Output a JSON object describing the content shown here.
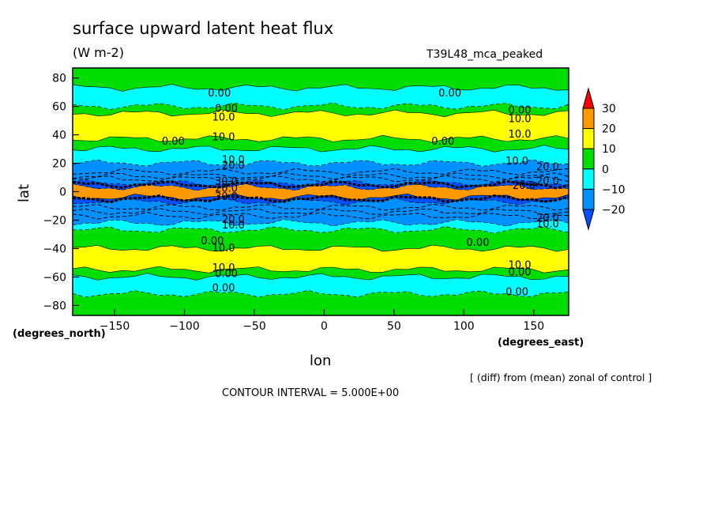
{
  "chart_data": {
    "type": "contour",
    "title": "surface upward latent heat flux",
    "units": "(W m-2)",
    "run_label": "T39L48_mca_peaked",
    "xlabel": "lon",
    "ylabel": "lat",
    "x_units": "(degrees_east)",
    "y_units": "(degrees_north)",
    "x_ticks": [
      -150,
      -100,
      -50,
      0,
      50,
      100,
      150
    ],
    "y_ticks": [
      80,
      60,
      40,
      20,
      0,
      -20,
      -40,
      -60,
      -80
    ],
    "xlim": [
      -180,
      175
    ],
    "ylim": [
      -87,
      87
    ],
    "note": "[ (diff) from (mean) zonal of control ]",
    "contour_interval": "CONTOUR INTERVAL = 5.000E+00",
    "colorbar": {
      "labels": [
        "30",
        "20",
        "10",
        "0",
        "−10",
        "−20"
      ],
      "colors": [
        "#ff0000",
        "#ff9900",
        "#ffff00",
        "#00dd00",
        "#00ffff",
        "#0090ff",
        "#0050ff"
      ]
    },
    "bands": [
      {
        "lat_top": 87,
        "lat_bottom": 73,
        "level": "0 to 10",
        "color": "#00dd00"
      },
      {
        "lat_top": 73,
        "lat_bottom": 60,
        "level": "-10 to 0",
        "color": "#00ffff"
      },
      {
        "lat_top": 60,
        "lat_bottom": 55,
        "level": "0 to 10",
        "color": "#00dd00"
      },
      {
        "lat_top": 55,
        "lat_bottom": 37,
        "level": "10 to 20",
        "color": "#ffff00"
      },
      {
        "lat_top": 37,
        "lat_bottom": 30,
        "level": "0 to 10",
        "color": "#00dd00"
      },
      {
        "lat_top": 30,
        "lat_bottom": 20,
        "level": "-10 to 0",
        "color": "#00ffff"
      },
      {
        "lat_top": 20,
        "lat_bottom": 6,
        "level": "-20 to -10",
        "color": "#0090ff"
      },
      {
        "lat_top": 6,
        "lat_bottom": 3,
        "level": "< -20",
        "color": "#0050ff"
      },
      {
        "lat_top": 3,
        "lat_bottom": -4,
        "level": "20 to 30",
        "color": "#ff9900"
      },
      {
        "lat_top": -4,
        "lat_bottom": -7,
        "level": "< -20",
        "color": "#0050ff"
      },
      {
        "lat_top": -7,
        "lat_bottom": -22,
        "level": "-20 to -10",
        "color": "#0090ff"
      },
      {
        "lat_top": -22,
        "lat_bottom": -27,
        "level": "-10 to 0",
        "color": "#00ffff"
      },
      {
        "lat_top": -27,
        "lat_bottom": -40,
        "level": "0 to 10",
        "color": "#00dd00"
      },
      {
        "lat_top": -40,
        "lat_bottom": -55,
        "level": "10 to 20",
        "color": "#ffff00"
      },
      {
        "lat_top": -55,
        "lat_bottom": -60,
        "level": "0 to 10",
        "color": "#00dd00"
      },
      {
        "lat_top": -60,
        "lat_bottom": -72,
        "level": "-10 to 0",
        "color": "#00ffff"
      },
      {
        "lat_top": -72,
        "lat_bottom": -87,
        "level": "0 to 10",
        "color": "#00dd00"
      }
    ],
    "contour_labels": [
      {
        "text": "0.00",
        "lon": -75,
        "lat": 69
      },
      {
        "text": "0.00",
        "lon": 90,
        "lat": 69
      },
      {
        "text": "0.00",
        "lon": -70,
        "lat": 58
      },
      {
        "text": "10.0",
        "lon": -72,
        "lat": 52
      },
      {
        "text": "0.00",
        "lon": 140,
        "lat": 57
      },
      {
        "text": "10.0",
        "lon": 140,
        "lat": 51
      },
      {
        "text": "10.0",
        "lon": 140,
        "lat": 40
      },
      {
        "text": "0.00",
        "lon": -108,
        "lat": 35
      },
      {
        "text": "10.0",
        "lon": -72,
        "lat": 38
      },
      {
        "text": "0.00",
        "lon": 85,
        "lat": 35
      },
      {
        "text": "10.0",
        "lon": -65,
        "lat": 22
      },
      {
        "text": "20.0",
        "lon": -65,
        "lat": 18
      },
      {
        "text": "10.0",
        "lon": 138,
        "lat": 21
      },
      {
        "text": "20.0",
        "lon": 160,
        "lat": 17
      },
      {
        "text": "30.0",
        "lon": -70,
        "lat": 7
      },
      {
        "text": "20.0",
        "lon": -70,
        "lat": 2
      },
      {
        "text": "20.0",
        "lon": 143,
        "lat": 4
      },
      {
        "text": "20.0",
        "lon": 160,
        "lat": 7
      },
      {
        "text": "30.0",
        "lon": -70,
        "lat": -4
      },
      {
        "text": "20.0",
        "lon": -65,
        "lat": -20
      },
      {
        "text": "10.0",
        "lon": -65,
        "lat": -24
      },
      {
        "text": "20.0",
        "lon": 160,
        "lat": -19
      },
      {
        "text": "10.0",
        "lon": 160,
        "lat": -23
      },
      {
        "text": "0.00",
        "lon": -80,
        "lat": -35
      },
      {
        "text": "0.00",
        "lon": 110,
        "lat": -36
      },
      {
        "text": "10.0",
        "lon": -72,
        "lat": -40
      },
      {
        "text": "10.0",
        "lon": 140,
        "lat": -52
      },
      {
        "text": "0.00",
        "lon": 140,
        "lat": -57
      },
      {
        "text": "10.0",
        "lon": -72,
        "lat": -54
      },
      {
        "text": "0.00",
        "lon": -70,
        "lat": -58
      },
      {
        "text": "0.00",
        "lon": -72,
        "lat": -68
      },
      {
        "text": "0.00",
        "lon": 138,
        "lat": -71
      }
    ]
  }
}
